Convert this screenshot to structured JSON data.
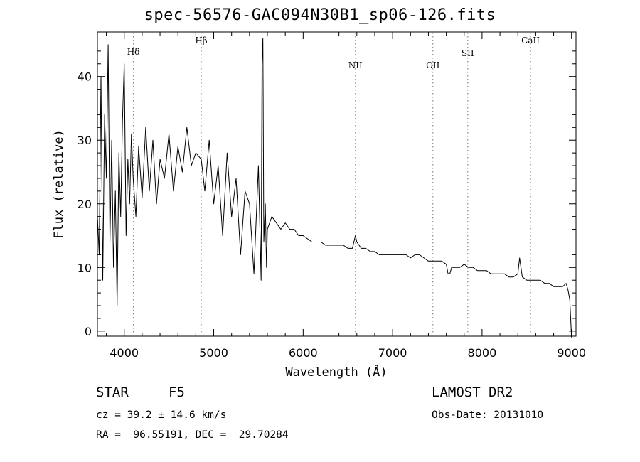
{
  "chart_data": {
    "type": "line",
    "title": "spec-56576-GAC094N30B1_sp06-126.fits",
    "xlabel": "Wavelength (Å)",
    "ylabel": "Flux (relative)",
    "xlim": [
      3700,
      9050
    ],
    "ylim": [
      -0.8,
      47
    ],
    "xticks": [
      4000,
      5000,
      6000,
      7000,
      8000,
      9000
    ],
    "yticks": [
      0,
      10,
      20,
      30,
      40
    ],
    "grid": false,
    "lines": [
      {
        "label": "Hδ",
        "x": 4102
      },
      {
        "label": "Hβ",
        "x": 4861
      },
      {
        "label": "NII",
        "x": 6584
      },
      {
        "label": "OII",
        "x": 7450
      },
      {
        "label": "SII",
        "x": 7840
      },
      {
        "label": "CaII",
        "x": 8542
      }
    ],
    "series": [
      {
        "x": [
          3700,
          3720,
          3740,
          3760,
          3780,
          3800,
          3820,
          3840,
          3860,
          3880,
          3900,
          3920,
          3940,
          3960,
          3980,
          4000,
          4020,
          4040,
          4060,
          4080,
          4100,
          4130,
          4160,
          4200,
          4240,
          4280,
          4320,
          4360,
          4400,
          4450,
          4500,
          4550,
          4600,
          4650,
          4700,
          4750,
          4800,
          4861,
          4900,
          4950,
          5000,
          5050,
          5100,
          5150,
          5200,
          5250,
          5300,
          5350,
          5400,
          5450,
          5500,
          5530,
          5540,
          5550,
          5560,
          5577,
          5590,
          5600,
          5650,
          5700,
          5750,
          5800,
          5850,
          5900,
          5950,
          6000,
          6050,
          6100,
          6150,
          6200,
          6250,
          6300,
          6350,
          6400,
          6450,
          6500,
          6550,
          6584,
          6600,
          6650,
          6700,
          6750,
          6800,
          6850,
          6900,
          6950,
          7000,
          7050,
          7100,
          7150,
          7200,
          7250,
          7300,
          7350,
          7400,
          7450,
          7500,
          7550,
          7600,
          7620,
          7640,
          7660,
          7700,
          7750,
          7800,
          7850,
          7900,
          7950,
          8000,
          8050,
          8100,
          8150,
          8200,
          8250,
          8300,
          8350,
          8400,
          8420,
          8450,
          8500,
          8550,
          8600,
          8650,
          8700,
          8750,
          8800,
          8850,
          8900,
          8940,
          8960,
          8980,
          8990,
          9000
        ],
        "y": [
          18,
          12,
          40,
          8,
          34,
          24,
          45,
          14,
          30,
          10,
          22,
          4,
          28,
          18,
          33,
          42,
          15,
          27,
          20,
          31,
          24,
          18,
          29,
          21,
          32,
          22,
          30,
          20,
          27,
          24,
          31,
          22,
          29,
          25,
          32,
          26,
          28,
          27,
          22,
          30,
          20,
          26,
          15,
          28,
          18,
          24,
          12,
          22,
          20,
          9,
          26,
          8,
          42,
          46,
          14,
          20,
          10,
          16,
          18,
          17,
          16,
          17,
          16,
          16,
          15,
          15,
          14.5,
          14,
          14,
          14,
          13.5,
          13.5,
          13.5,
          13.5,
          13.5,
          13,
          13,
          15,
          14,
          13,
          13,
          12.5,
          12.5,
          12,
          12,
          12,
          12,
          12,
          12,
          12,
          11.5,
          12,
          12,
          11.5,
          11,
          11,
          11,
          11,
          10.5,
          9,
          9,
          10,
          10,
          10,
          10.5,
          10,
          10,
          9.5,
          9.5,
          9.5,
          9,
          9,
          9,
          9,
          8.5,
          8.5,
          9,
          11.5,
          8.5,
          8,
          8,
          8,
          8,
          7.5,
          7.5,
          7,
          7,
          7,
          7.5,
          6.5,
          5,
          2,
          -1
        ]
      }
    ]
  },
  "info": {
    "object_class": "STAR",
    "subclass": "F5",
    "redshift_text": "cz = 39.2 ± 14.6 km/s",
    "coords_text": "RA =  96.55191, DEC =  29.70284",
    "survey": "LAMOST DR2",
    "obs_date": "Obs-Date: 20131010"
  },
  "colors": {
    "line": "#000000",
    "marker": "#888888",
    "background": "#ffffff"
  }
}
